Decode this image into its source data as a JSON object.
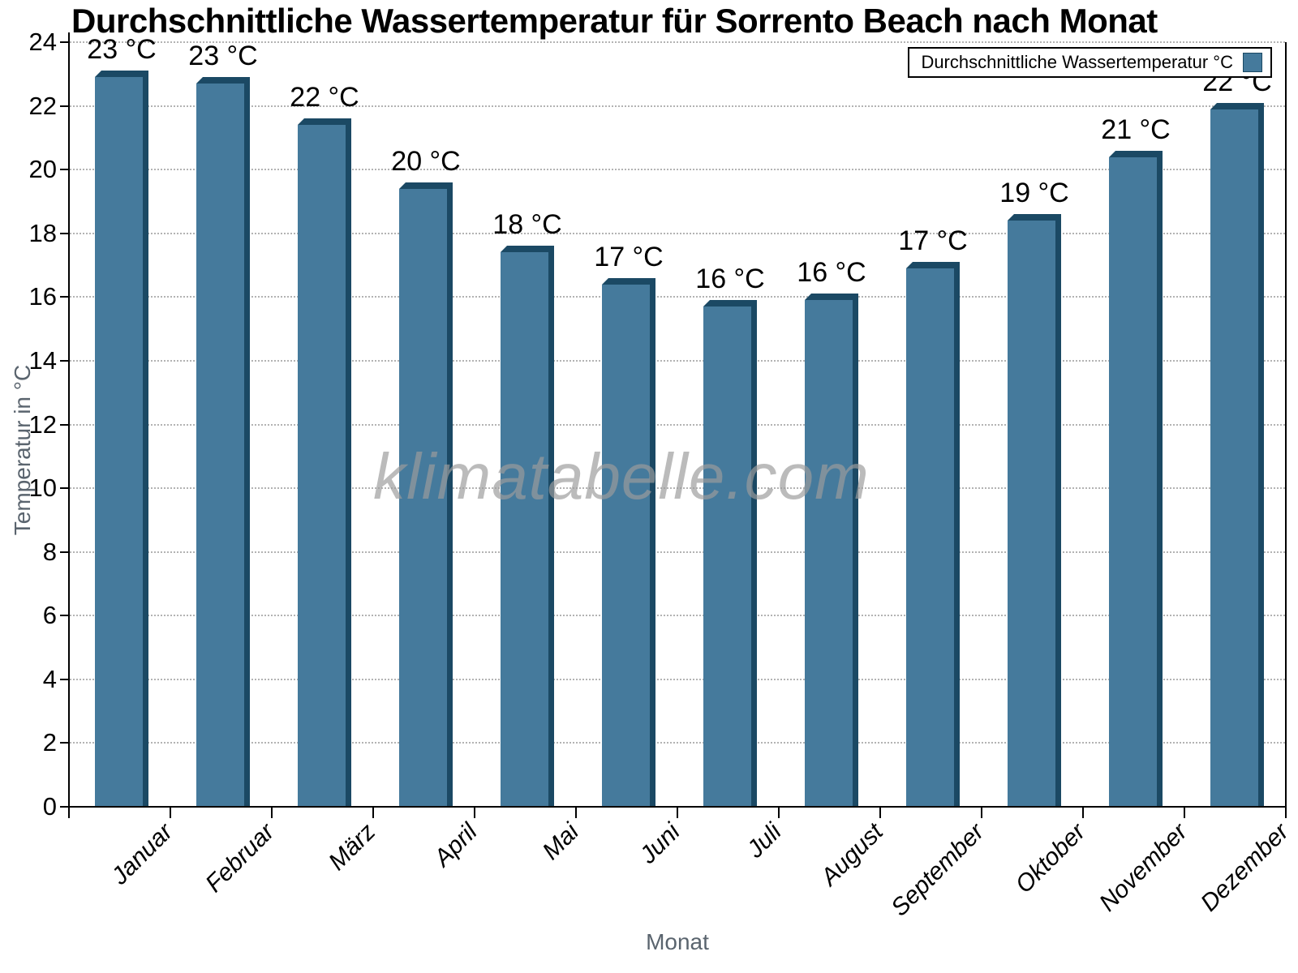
{
  "title": "Durchschnittliche Wassertemperatur für Sorrento Beach nach Monat",
  "watermark": "klimatabelle.com",
  "legend": {
    "label": "Durchschnittliche Wassertemperatur °C"
  },
  "axes": {
    "xlabel": "Monat",
    "ylabel": "Temperatur in °C"
  },
  "chart_data": {
    "type": "bar",
    "title": "Durchschnittliche Wassertemperatur für Sorrento Beach nach Monat",
    "categories": [
      "Januar",
      "Februar",
      "März",
      "April",
      "Mai",
      "Juni",
      "Juli",
      "August",
      "September",
      "Oktober",
      "November",
      "Dezember"
    ],
    "series": [
      {
        "name": "Durchschnittliche Wassertemperatur °C",
        "values": [
          23.1,
          22.9,
          21.6,
          19.6,
          17.6,
          16.6,
          15.9,
          16.1,
          17.1,
          18.6,
          20.6,
          22.1
        ]
      }
    ],
    "bar_labels": [
      "23 °C",
      "23 °C",
      "22 °C",
      "20 °C",
      "18 °C",
      "17 °C",
      "16 °C",
      "16 °C",
      "17 °C",
      "19 °C",
      "21 °C",
      "22 °C"
    ],
    "xlabel": "Monat",
    "ylabel": "Temperatur in °C",
    "ylim": [
      0,
      24
    ],
    "ytick_step": 2,
    "grid": "horizontal-dotted",
    "legend_position": "top-right",
    "colors": {
      "bar_fill": "#457a9c",
      "bar_edge": "#1b4964",
      "grid": "#b3b3b3",
      "axis": "#000000",
      "secondary_text": "#5a646e",
      "watermark": "#9c9c9c"
    }
  }
}
